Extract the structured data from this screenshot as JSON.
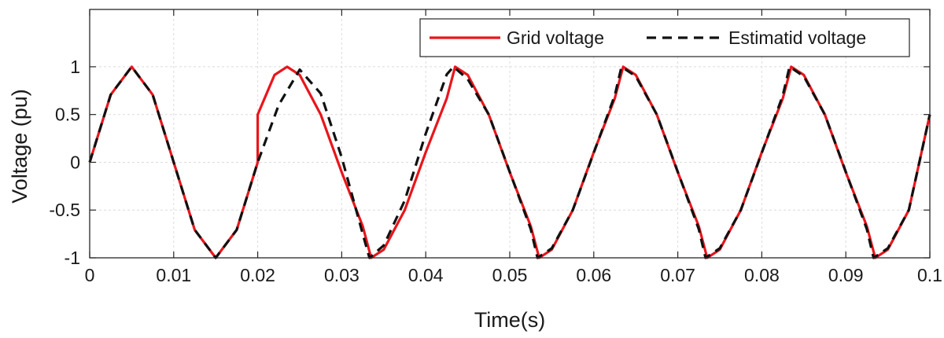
{
  "chart_data": {
    "type": "line",
    "title": "",
    "xlabel": "Time(s)",
    "ylabel": "Voltage (pu)",
    "xlim": [
      0,
      0.1
    ],
    "ylim": [
      -1,
      1.6
    ],
    "x_ticks": [
      0,
      0.01,
      0.02,
      0.03,
      0.04,
      0.05,
      0.06,
      0.07,
      0.08,
      0.09,
      0.1
    ],
    "x_tick_labels": [
      "0",
      "0.01",
      "0.02",
      "0.03",
      "0.04",
      "0.05",
      "0.06",
      "0.07",
      "0.08",
      "0.09",
      "0.1"
    ],
    "y_ticks": [
      -1,
      -0.5,
      0,
      0.5,
      1
    ],
    "y_tick_labels": [
      "-1",
      "-0.5",
      "0",
      "0.5",
      "1"
    ],
    "grid": true,
    "legend_position": "top-right",
    "series": [
      {
        "name": "Grid voltage",
        "color": "#e8161b",
        "style": "solid",
        "x": [
          0,
          0.0025,
          0.005,
          0.0075,
          0.01,
          0.0125,
          0.015,
          0.0175,
          0.02,
          0.02,
          0.022,
          0.0235,
          0.025,
          0.0275,
          0.03,
          0.0325,
          0.0335,
          0.035,
          0.0375,
          0.04,
          0.0425,
          0.0435,
          0.045,
          0.0475,
          0.05,
          0.0525,
          0.0535,
          0.055,
          0.0575,
          0.06,
          0.0625,
          0.0635,
          0.065,
          0.0675,
          0.07,
          0.0725,
          0.0735,
          0.075,
          0.0775,
          0.08,
          0.0825,
          0.0835,
          0.085,
          0.0875,
          0.09,
          0.0925,
          0.0935,
          0.095,
          0.0975,
          0.1
        ],
        "y": [
          0,
          0.707,
          1,
          0.707,
          0,
          -0.707,
          -1,
          -0.707,
          0,
          0.5,
          0.914,
          1,
          0.914,
          0.5,
          -0.105,
          -0.669,
          -1,
          -0.914,
          -0.5,
          0.105,
          0.669,
          1,
          0.914,
          0.5,
          -0.105,
          -0.669,
          -1,
          -0.914,
          -0.5,
          0.105,
          0.669,
          1,
          0.914,
          0.5,
          -0.105,
          -0.669,
          -1,
          -0.914,
          -0.5,
          0.105,
          0.669,
          1,
          0.914,
          0.5,
          -0.105,
          -0.669,
          -1,
          -0.914,
          -0.5,
          0.5
        ]
      },
      {
        "name": "Estimatid voltage",
        "color": "#111111",
        "style": "dashed",
        "x": [
          0,
          0.0025,
          0.005,
          0.0075,
          0.01,
          0.0125,
          0.015,
          0.0175,
          0.02,
          0.0225,
          0.025,
          0.0275,
          0.03,
          0.0325,
          0.0333,
          0.035,
          0.0375,
          0.04,
          0.0425,
          0.0433,
          0.045,
          0.0475,
          0.05,
          0.0525,
          0.0533,
          0.055,
          0.0575,
          0.06,
          0.0625,
          0.0633,
          0.065,
          0.0675,
          0.07,
          0.0725,
          0.0733,
          0.075,
          0.0775,
          0.08,
          0.0825,
          0.0833,
          0.085,
          0.0875,
          0.09,
          0.0925,
          0.0933,
          0.095,
          0.0975,
          0.1
        ],
        "y": [
          0,
          0.707,
          1,
          0.707,
          0,
          -0.707,
          -1,
          -0.707,
          0,
          0.6,
          0.97,
          0.72,
          0.05,
          -0.75,
          -1,
          -0.87,
          -0.4,
          0.3,
          0.92,
          1,
          0.87,
          0.5,
          -0.1,
          -0.7,
          -1,
          -0.9,
          -0.5,
          0.1,
          0.7,
          1,
          0.9,
          0.5,
          -0.1,
          -0.7,
          -1,
          -0.9,
          -0.5,
          0.1,
          0.7,
          1,
          0.9,
          0.5,
          -0.1,
          -0.7,
          -1,
          -0.9,
          -0.5,
          0.5
        ]
      }
    ]
  }
}
